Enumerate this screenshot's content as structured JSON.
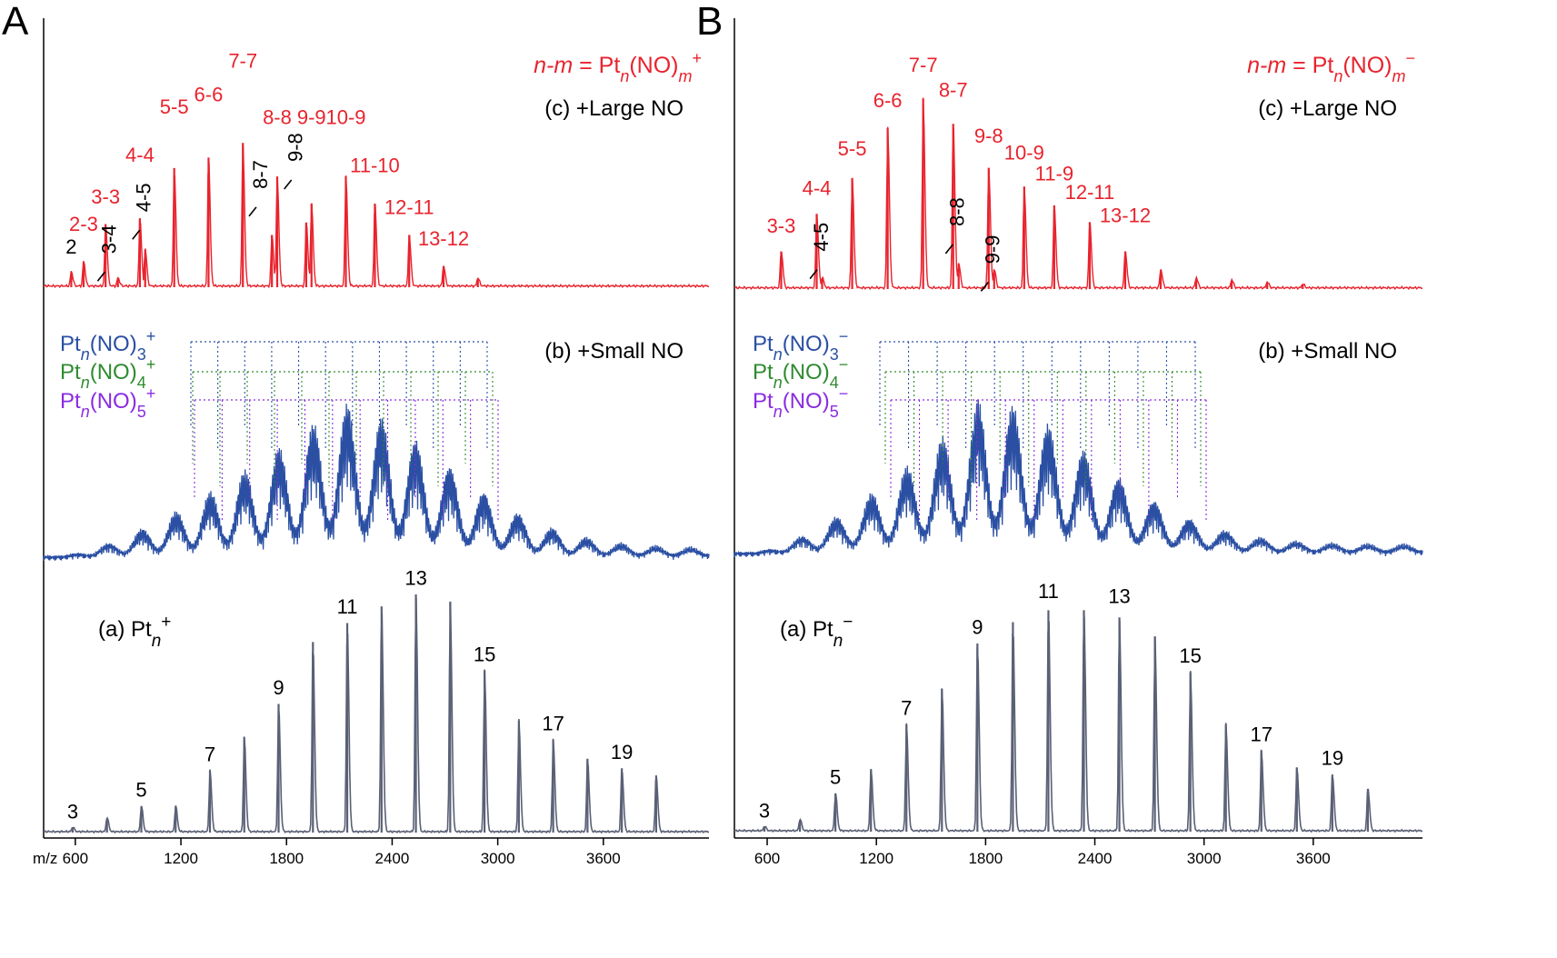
{
  "colors": {
    "red": "#e8232d",
    "blue": "#2a4fa3",
    "green": "#2e8b2e",
    "purple": "#8a2be2",
    "gray": "#5a6075",
    "black": "#000000"
  },
  "axis": {
    "label": "m/z",
    "ticks": [
      "600",
      "1200",
      "1800",
      "2400",
      "3000",
      "3600"
    ],
    "xlim": [
      420,
      4200
    ]
  },
  "panels": [
    {
      "letter": "A",
      "formula_key": {
        "prefix": "n-m",
        "eq": " = Pt",
        "sub": "n",
        "mid": "(NO)",
        "sub2": "m",
        "charge": "+"
      },
      "c_label": "(c) +Large NO",
      "b_label": "(b) +Small NO",
      "a_label": {
        "text": "(a) Pt",
        "sub": "n",
        "charge": "+"
      },
      "b_series": [
        {
          "base": "Pt",
          "sub": "n",
          "mid": "(NO)",
          "num": "3",
          "charge": "+"
        },
        {
          "base": "Pt",
          "sub": "n",
          "mid": "(NO)",
          "num": "4",
          "charge": "+"
        },
        {
          "base": "Pt",
          "sub": "n",
          "mid": "(NO)",
          "num": "5",
          "charge": "+"
        }
      ],
      "chart_data": [
        {
          "type": "line",
          "name_label": "(c) +Large NO",
          "peaks": [
            {
              "x": 577,
              "y": 0.07
            },
            {
              "x": 647,
              "y": 0.12
            },
            {
              "x": 772,
              "y": 0.3
            },
            {
              "x": 842,
              "y": 0.04
            },
            {
              "x": 967,
              "y": 0.33
            },
            {
              "x": 997,
              "y": 0.18
            },
            {
              "x": 1162,
              "y": 0.57
            },
            {
              "x": 1357,
              "y": 0.62
            },
            {
              "x": 1552,
              "y": 0.69
            },
            {
              "x": 1717,
              "y": 0.25
            },
            {
              "x": 1747,
              "y": 0.53
            },
            {
              "x": 1912,
              "y": 0.31
            },
            {
              "x": 1942,
              "y": 0.4
            },
            {
              "x": 2137,
              "y": 0.53
            },
            {
              "x": 2302,
              "y": 0.4
            },
            {
              "x": 2497,
              "y": 0.25
            },
            {
              "x": 2692,
              "y": 0.1
            },
            {
              "x": 2887,
              "y": 0.04
            }
          ],
          "peak_labels": [
            {
              "text": "2",
              "x": 577,
              "y": 0.16,
              "color": "black"
            },
            {
              "text": "2-3",
              "x": 647,
              "y": 0.27,
              "color": "red"
            },
            {
              "text": "3-3",
              "x": 772,
              "y": 0.4,
              "color": "red"
            },
            {
              "text": "4-4",
              "x": 967,
              "y": 0.6,
              "color": "red"
            },
            {
              "text": "5-5",
              "x": 1162,
              "y": 0.83,
              "color": "red"
            },
            {
              "text": "6-6",
              "x": 1357,
              "y": 0.89,
              "color": "red"
            },
            {
              "text": "7-7",
              "x": 1552,
              "y": 1.05,
              "color": "red"
            },
            {
              "text": "8-8",
              "x": 1747,
              "y": 0.78,
              "color": "red"
            },
            {
              "text": "9-9",
              "x": 1942,
              "y": 0.78,
              "color": "red"
            },
            {
              "text": "10-9",
              "x": 2137,
              "y": 0.78,
              "color": "red"
            },
            {
              "text": "11-10",
              "x": 2302,
              "y": 0.55,
              "color": "red"
            },
            {
              "text": "12-11",
              "x": 2497,
              "y": 0.35,
              "color": "red"
            },
            {
              "text": "13-12",
              "x": 2692,
              "y": 0.2,
              "color": "red"
            },
            {
              "text": "3-4",
              "x": 830,
              "y": 0.16,
              "color": "black",
              "rotate": true
            },
            {
              "text": "4-5",
              "x": 1028,
              "y": 0.36,
              "color": "black",
              "rotate": true
            },
            {
              "text": "8-7",
              "x": 1690,
              "y": 0.47,
              "color": "black",
              "rotate": true
            },
            {
              "text": "9-8",
              "x": 1890,
              "y": 0.6,
              "color": "black",
              "rotate": true
            }
          ]
        },
        {
          "type": "line",
          "name_label": "(b) +Small NO",
          "envelope": {
            "start": 500,
            "peak": 2050,
            "end": 4200,
            "max": 0.85
          },
          "peaks": []
        },
        {
          "type": "line",
          "name_label": "(a) Pt_n+",
          "peaks": [
            {
              "x": 585,
              "y": 0.02
            },
            {
              "x": 780,
              "y": 0.06
            },
            {
              "x": 975,
              "y": 0.11
            },
            {
              "x": 1170,
              "y": 0.11
            },
            {
              "x": 1365,
              "y": 0.26
            },
            {
              "x": 1560,
              "y": 0.4
            },
            {
              "x": 1755,
              "y": 0.54
            },
            {
              "x": 1950,
              "y": 0.8
            },
            {
              "x": 2145,
              "y": 0.88
            },
            {
              "x": 2340,
              "y": 0.95
            },
            {
              "x": 2535,
              "y": 1.0
            },
            {
              "x": 2730,
              "y": 0.97
            },
            {
              "x": 2925,
              "y": 0.68
            },
            {
              "x": 3120,
              "y": 0.47
            },
            {
              "x": 3315,
              "y": 0.39
            },
            {
              "x": 3510,
              "y": 0.31
            },
            {
              "x": 3705,
              "y": 0.27
            },
            {
              "x": 3900,
              "y": 0.24
            }
          ],
          "peak_labels": [
            {
              "text": "3",
              "x": 585,
              "y": 0.06
            },
            {
              "text": "5",
              "x": 975,
              "y": 0.15
            },
            {
              "text": "7",
              "x": 1365,
              "y": 0.3
            },
            {
              "text": "9",
              "x": 1755,
              "y": 0.58
            },
            {
              "text": "11",
              "x": 2145,
              "y": 0.92
            },
            {
              "text": "13",
              "x": 2535,
              "y": 1.04
            },
            {
              "text": "15",
              "x": 2925,
              "y": 0.72
            },
            {
              "text": "17",
              "x": 3315,
              "y": 0.43
            },
            {
              "text": "19",
              "x": 3705,
              "y": 0.31
            }
          ]
        }
      ]
    },
    {
      "letter": "B",
      "formula_key": {
        "prefix": "n-m",
        "eq": " = Pt",
        "sub": "n",
        "mid": "(NO)",
        "sub2": "m",
        "charge": "−"
      },
      "c_label": "(c) +Large NO",
      "b_label": "(b) +Small NO",
      "a_label": {
        "text": "(a) Pt",
        "sub": "n",
        "charge": "−"
      },
      "b_series": [
        {
          "base": "Pt",
          "sub": "n",
          "mid": "(NO)",
          "num": "3",
          "charge": "−"
        },
        {
          "base": "Pt",
          "sub": "n",
          "mid": "(NO)",
          "num": "4",
          "charge": "−"
        },
        {
          "base": "Pt",
          "sub": "n",
          "mid": "(NO)",
          "num": "5",
          "charge": "−"
        }
      ],
      "chart_data": [
        {
          "type": "line",
          "name_label": "(c) +Large NO",
          "peaks": [
            {
              "x": 677,
              "y": 0.18
            },
            {
              "x": 872,
              "y": 0.36
            },
            {
              "x": 902,
              "y": 0.05
            },
            {
              "x": 1067,
              "y": 0.53
            },
            {
              "x": 1262,
              "y": 0.77
            },
            {
              "x": 1457,
              "y": 0.91
            },
            {
              "x": 1622,
              "y": 0.79
            },
            {
              "x": 1652,
              "y": 0.12
            },
            {
              "x": 1817,
              "y": 0.58
            },
            {
              "x": 1847,
              "y": 0.09
            },
            {
              "x": 2012,
              "y": 0.49
            },
            {
              "x": 2177,
              "y": 0.4
            },
            {
              "x": 2372,
              "y": 0.32
            },
            {
              "x": 2567,
              "y": 0.18
            },
            {
              "x": 2762,
              "y": 0.09
            },
            {
              "x": 2957,
              "y": 0.05
            },
            {
              "x": 3152,
              "y": 0.04
            },
            {
              "x": 3347,
              "y": 0.03
            },
            {
              "x": 3542,
              "y": 0.02
            }
          ],
          "peak_labels": [
            {
              "text": "3-3",
              "x": 677,
              "y": 0.27,
              "color": "red"
            },
            {
              "text": "4-4",
              "x": 872,
              "y": 0.45,
              "color": "red"
            },
            {
              "text": "5-5",
              "x": 1067,
              "y": 0.64,
              "color": "red"
            },
            {
              "text": "6-6",
              "x": 1262,
              "y": 0.87,
              "color": "red"
            },
            {
              "text": "7-7",
              "x": 1457,
              "y": 1.04,
              "color": "red"
            },
            {
              "text": "8-7",
              "x": 1622,
              "y": 0.92,
              "color": "red"
            },
            {
              "text": "9-8",
              "x": 1817,
              "y": 0.7,
              "color": "red"
            },
            {
              "text": "10-9",
              "x": 2012,
              "y": 0.62,
              "color": "red"
            },
            {
              "text": "11-9",
              "x": 2177,
              "y": 0.52,
              "color": "red"
            },
            {
              "text": "12-11",
              "x": 2372,
              "y": 0.43,
              "color": "red"
            },
            {
              "text": "13-12",
              "x": 2567,
              "y": 0.32,
              "color": "red"
            },
            {
              "text": "4-5",
              "x": 935,
              "y": 0.18,
              "color": "black",
              "rotate": true
            },
            {
              "text": "8-8",
              "x": 1680,
              "y": 0.3,
              "color": "black",
              "rotate": true
            },
            {
              "text": "9-9",
              "x": 1875,
              "y": 0.12,
              "color": "black",
              "rotate": true
            }
          ]
        },
        {
          "type": "line",
          "name_label": "(b) +Small NO",
          "envelope": {
            "start": 520,
            "peak": 1750,
            "end": 4200,
            "max": 0.85
          },
          "peaks": []
        },
        {
          "type": "line",
          "name_label": "(a) Pt_n−",
          "peaks": [
            {
              "x": 585,
              "y": 0.02
            },
            {
              "x": 780,
              "y": 0.05
            },
            {
              "x": 975,
              "y": 0.16
            },
            {
              "x": 1170,
              "y": 0.26
            },
            {
              "x": 1365,
              "y": 0.45
            },
            {
              "x": 1560,
              "y": 0.6
            },
            {
              "x": 1755,
              "y": 0.79
            },
            {
              "x": 1950,
              "y": 0.88
            },
            {
              "x": 2145,
              "y": 0.93
            },
            {
              "x": 2340,
              "y": 0.93
            },
            {
              "x": 2535,
              "y": 0.9
            },
            {
              "x": 2730,
              "y": 0.82
            },
            {
              "x": 2925,
              "y": 0.67
            },
            {
              "x": 3120,
              "y": 0.45
            },
            {
              "x": 3315,
              "y": 0.34
            },
            {
              "x": 3510,
              "y": 0.27
            },
            {
              "x": 3705,
              "y": 0.24
            },
            {
              "x": 3900,
              "y": 0.18
            }
          ],
          "peak_labels": [
            {
              "text": "3",
              "x": 585,
              "y": 0.06
            },
            {
              "text": "5",
              "x": 975,
              "y": 0.2
            },
            {
              "text": "7",
              "x": 1365,
              "y": 0.49
            },
            {
              "text": "9",
              "x": 1755,
              "y": 0.83
            },
            {
              "text": "11",
              "x": 2145,
              "y": 0.98
            },
            {
              "text": "13",
              "x": 2535,
              "y": 0.96
            },
            {
              "text": "15",
              "x": 2925,
              "y": 0.71
            },
            {
              "text": "17",
              "x": 3315,
              "y": 0.38
            },
            {
              "text": "19",
              "x": 3705,
              "y": 0.28
            }
          ]
        }
      ]
    }
  ]
}
